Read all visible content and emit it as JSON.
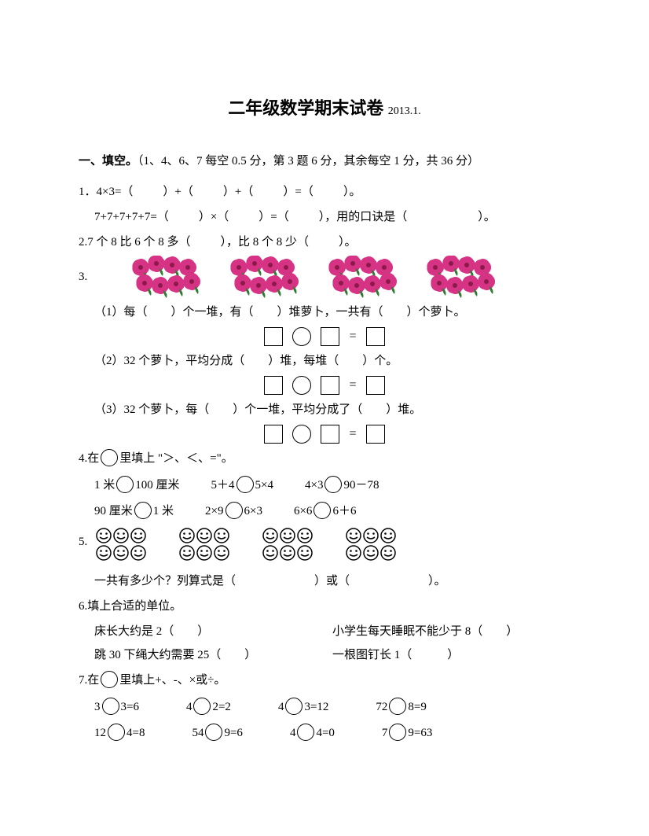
{
  "title_main": "二年级数学期末试卷",
  "title_date": "2013.1.",
  "section1": {
    "head_label": "一、填空。",
    "head_scoring": "（1、4、6、7 每空 0.5 分，第 3 题 6 分，其余每空 1 分，共 36 分）"
  },
  "q1": {
    "line1_pre": "1．4×3=（",
    "line1_mid1": "）+（",
    "line1_mid2": "）+（",
    "line1_mid3": "）=（",
    "line1_end": "）。",
    "line2_pre": "7+7+7+7+7=（",
    "line2_mid1": "）×（",
    "line2_mid2": "）=（",
    "line2_mid3": "），用的口诀是（",
    "line2_end": "）。"
  },
  "q2": {
    "pre": "2.7 个 8 比 6 个 8 多（",
    "mid": "），比 8 个 8 少（",
    "end": "）。"
  },
  "q3": {
    "label": "3.",
    "flower_groups": 4,
    "sub1": "（1）每（　　）个一堆，有（　　）堆萝卜，一共有（　　）个萝卜。",
    "sub2": "（2）32 个萝卜，平均分成（　　）堆，每堆（　　）个。",
    "sub3": "（3）32 个萝卜，每（　　）个一堆，平均分成了（　　）堆。",
    "eq_symbol": "="
  },
  "q4": {
    "lead_pre": "4.在",
    "lead_post": "里填上 \"＞、＜、=\"。",
    "r1c1a": "1 米",
    "r1c1b": "100 厘米",
    "r1c2a": "5＋4",
    "r1c2b": "5×4",
    "r1c3a": "4×3",
    "r1c3b": "90－78",
    "r2c1a": "90 厘米",
    "r2c1b": "1 米",
    "r2c2a": "2×9",
    "r2c2b": "6×3",
    "r2c3a": "6×6",
    "r2c3b": "6＋6"
  },
  "q5": {
    "label": "5.",
    "smiley_groups": 4,
    "caption_pre": "一共有多少个？列算式是（",
    "caption_mid": "）或（",
    "caption_end": "）。"
  },
  "q6": {
    "lead": "6.填上合适的单位。",
    "l1a": "床长大约是 2（　　）",
    "l1b": "小学生每天睡眠不能少于 8（　　）",
    "l2a": "跳 30 下绳大约需要 25（　　）",
    "l2b": "一根图钉长 1（　　　）"
  },
  "q7": {
    "lead_pre": "7.在",
    "lead_post": "里填上+、-、×或÷。",
    "r1c1a": "3",
    "r1c1b": "3=6",
    "r1c2a": "4",
    "r1c2b": "2=2",
    "r1c3a": "4",
    "r1c3b": "3=12",
    "r1c4a": "72",
    "r1c4b": "8=9",
    "r2c1a": "12",
    "r2c1b": "4=8",
    "r2c2a": "54",
    "r2c2b": "9=6",
    "r2c3a": "4",
    "r2c3b": "4=0",
    "r2c4a": "7",
    "r2c4b": "9=63"
  },
  "colors": {
    "text": "#000000",
    "bg": "#ffffff",
    "flower_petal": "#d63384",
    "flower_leaf": "#2e7d32"
  }
}
